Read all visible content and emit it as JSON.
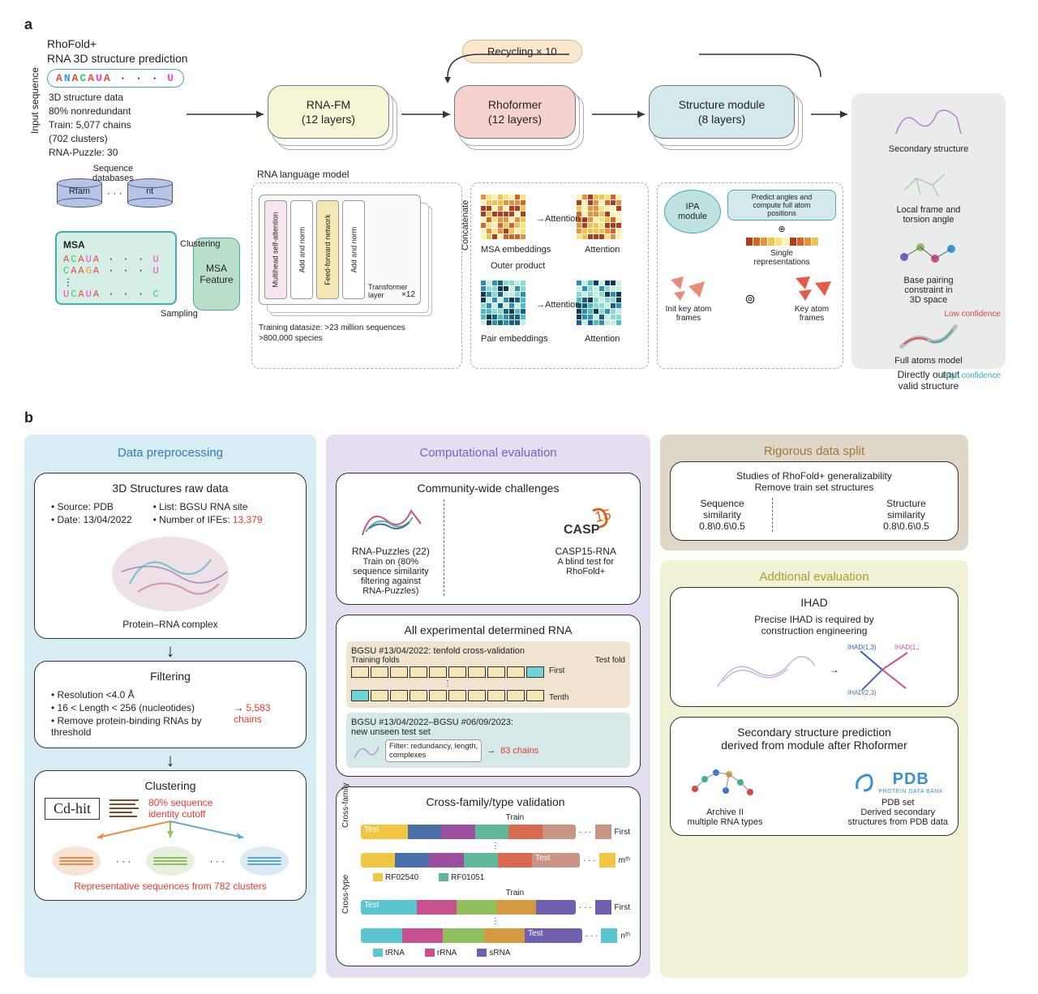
{
  "panelA": {
    "label": "a",
    "title1": "RhoFold+",
    "title2": "RNA 3D structure prediction",
    "seq": [
      "A",
      "N",
      "A",
      "C",
      "A",
      "U",
      "A",
      " · · · ",
      "U"
    ],
    "meta": [
      "3D structure data",
      "80% nonredundant",
      "Train: 5,077 chains",
      "(702 clusters)",
      "RNA-Puzzle: 30"
    ],
    "vertLabel": "Input sequence",
    "dbLabel": "Sequence\ndatabases",
    "db1": "Rfam",
    "dbDots": "· · ·",
    "db2": "nt",
    "msaHdr": "MSA",
    "msaRows": [
      [
        "A",
        "C",
        "A",
        "U",
        "A",
        " · · · ",
        "U"
      ],
      [
        "C",
        "A",
        "A",
        "G",
        "A",
        " · · · ",
        "U"
      ],
      [
        "",
        "",
        "",
        "⋮",
        "",
        "",
        ""
      ],
      [
        "U",
        "C",
        "A",
        "U",
        "A",
        " · · · ",
        "C"
      ]
    ],
    "msaFeat": "MSA\nFeature",
    "clusterTxt": "Clustering",
    "samplingTxt": "Sampling",
    "recycle": "Recycling × 10",
    "modules": {
      "rnafm": "RNA-FM\n(12 layers)",
      "rhoformer": "Rhoformer\n(12 layers)",
      "struct": "Structure module\n(8 layers)"
    },
    "lm": {
      "title": "RNA language model",
      "blocks": [
        "Multihead self-attention",
        "Add and norm",
        "Feed-forward network",
        "Add and norm"
      ],
      "layerLabel": "Transformer layer",
      "x12": "×12",
      "foot": "Training datasize: >23 million sequences\n>800,000 species",
      "pairLabels": [
        "MSA embeddings",
        "Pair embeddings"
      ],
      "attnLabels": [
        "Attention",
        "Attention"
      ],
      "concat": "Concatenate",
      "outer": "Outer product"
    },
    "ipa": {
      "title": "IPA\nmodule",
      "predictTxt": "Predict angles and\ncompute full atom\npositions",
      "single": "Single\nrepresentations",
      "initFrames": "Init key atom\nframes",
      "keyFrames": "Key atom\nframes"
    },
    "out": {
      "items": [
        "Secondary structure",
        "Local frame and\ntorsion angle",
        "Base pairing\nconstraint in\n3D space"
      ],
      "lowConf": "Low confidence",
      "highConf": "High confidence",
      "fullAtoms": "Full atoms model",
      "directOut": "Directly output\nvalid structure"
    },
    "colors": {
      "warm": [
        "#b33a1a",
        "#d9641e",
        "#e8913a",
        "#f2c249",
        "#f9e27a",
        "#fdf2b0"
      ],
      "cool": [
        "#0d3b5c",
        "#16618a",
        "#2b90b6",
        "#4bbcc9",
        "#86dcd0",
        "#c6efe4"
      ]
    }
  },
  "panelB": {
    "label": "b",
    "col1": {
      "title": "Data preprocessing",
      "card1": {
        "title": "3D Structures raw data",
        "b1": "Source: PDB",
        "b2": "List: BGSU RNA site",
        "b3": "Date: 13/04/2022",
        "b4pre": "Number of IFEs: ",
        "b4red": "13,379",
        "caption": "Protein–RNA complex"
      },
      "card2": {
        "title": "Filtering",
        "b1": "Resolution <4.0 Å",
        "b2": "16 < Length < 256 (nucleotides)",
        "b3": "Remove protein-binding RNAs by threshold",
        "red": "5,583 chains"
      },
      "card3": {
        "title": "Clustering",
        "cdhit": "Cd-hit",
        "cutoff": "80% sequence\nidentity cutoff",
        "foot": "Representative sequences from 782 clusters"
      }
    },
    "col2": {
      "title": "Computational evaluation",
      "card1": {
        "title": "Community-wide challenges",
        "left1": "RNA-Puzzles (22)",
        "left2": "Train on (80%\nsequence similarity\nfiltering against\nRNA-Puzzles)",
        "right1": "CASP15-RNA",
        "right2": "A blind test for\nRhoFold+"
      },
      "card2": {
        "title": "All experimental determined RNA",
        "top": "BGSU #13/04/2022: tenfold cross-validation",
        "trainLbl": "Training folds",
        "testLbl": "Test fold",
        "first": "First",
        "tenth": "Tenth",
        "bottom": "BGSU #13/04/2022–BGSU #06/09/2023:\nnew unseen test set",
        "filter": "Filter: redundancy, length,\ncomplexes",
        "red": "83 chains"
      },
      "card3": {
        "title": "Cross-family/type validation",
        "vlabels": [
          "Cross-family",
          "Cross-type"
        ],
        "rowLabels": [
          "First",
          "mᵗʰ",
          "First",
          "nᵗʰ"
        ],
        "trainTxt": "Train",
        "testTxt": "Test",
        "famColors": [
          "#f0c643",
          "#4a6fa8",
          "#9c4f9e",
          "#5fb89a",
          "#d86b4f",
          "#c99485"
        ],
        "famLegend": [
          {
            "c": "#f0c643",
            "t": "RF02540"
          },
          {
            "c": "#5fb89a",
            "t": "RF01051"
          }
        ],
        "typeColors": [
          "#5cc6d0",
          "#c7518e",
          "#8fbf5f",
          "#d39a3f",
          "#6f5fae"
        ],
        "typeLegend": [
          {
            "c": "#5cc6d0",
            "t": "tRNA"
          },
          {
            "c": "#c7518e",
            "t": "rRNA"
          },
          {
            "c": "#6f5fae",
            "t": "sRNA"
          }
        ]
      }
    },
    "col3a": {
      "title": "Rigorous data split",
      "line1": "Studies of RhoFold+ generalizability",
      "line2": "Remove train set structures",
      "leftH": "Sequence\nsimilarity",
      "leftV": "0.8\\0.6\\0.5",
      "rightH": "Structure\nsimilarity",
      "rightV": "0.8\\0.6\\0.5"
    },
    "col3b": {
      "title": "Addtional evaluation",
      "card1": {
        "title": "IHAD",
        "txt": "Precise IHAD is required by\nconstruction engineering"
      },
      "card2": {
        "title": "Secondary structure prediction\nderived from module after Rhoformer",
        "left": "Archive II\nmultiple RNA types",
        "rightLogo": "PDB",
        "rightSub": "PROTEIN DATA BANK",
        "right": "PDB set\nDerived secondary\nstructures from PDB data"
      }
    }
  }
}
